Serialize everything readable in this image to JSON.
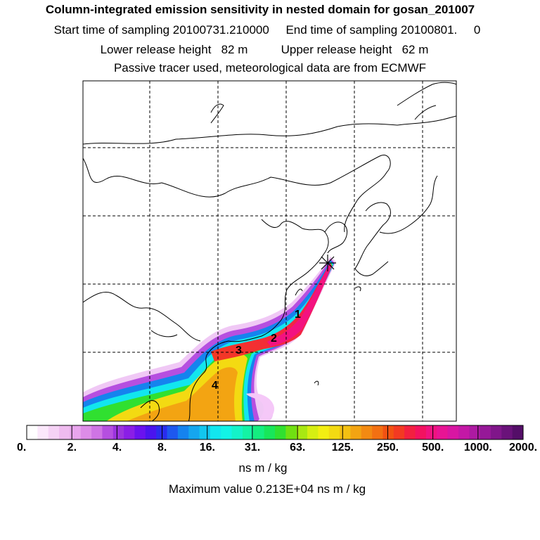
{
  "header": {
    "title": "Column-integrated emission sensitivity in nested domain for gosan_201007",
    "line2": "Start time of sampling 20100731.210000     End time of sampling 20100801.     0",
    "line3": "Lower release height   82 m          Upper release height   62 m",
    "line4": "Passive tracer used, meteorological data are from ECMWF"
  },
  "map": {
    "receptor_marker": "star-icon",
    "labels": [
      "1",
      "2",
      "3",
      "4"
    ]
  },
  "colorbar": {
    "ticks": [
      "0.",
      "2.",
      "4.",
      "8.",
      "16.",
      "31.",
      "63.",
      "125.",
      "250.",
      "500.",
      "1000.",
      "2000."
    ],
    "colors": [
      "#ffffff",
      "#fbe8fb",
      "#f5d2f5",
      "#efbbef",
      "#e9a5ee",
      "#dd8ce8",
      "#cf74e4",
      "#b54fe0",
      "#9b33de",
      "#8a1ee6",
      "#6a12ee",
      "#4a14ee",
      "#2a2cee",
      "#1e58ee",
      "#1583ee",
      "#15a6ee",
      "#12c6ee",
      "#12e6ee",
      "#12f3e6",
      "#14f3c8",
      "#14f3a4",
      "#14ee80",
      "#18e65a",
      "#30e030",
      "#70e012",
      "#a8e812",
      "#d6ee12",
      "#f3ee12",
      "#f3da12",
      "#f3c012",
      "#f3a412",
      "#f38a12",
      "#f37012",
      "#f35212",
      "#f33a22",
      "#f32040",
      "#f31260",
      "#f01280",
      "#e81494",
      "#d816a2",
      "#c418a6",
      "#ae1aa2",
      "#961898",
      "#80168a",
      "#6a127a",
      "#540e68"
    ],
    "units": "ns m / kg",
    "max_value": "Maximum value  0.213E+04 ns m / kg"
  }
}
